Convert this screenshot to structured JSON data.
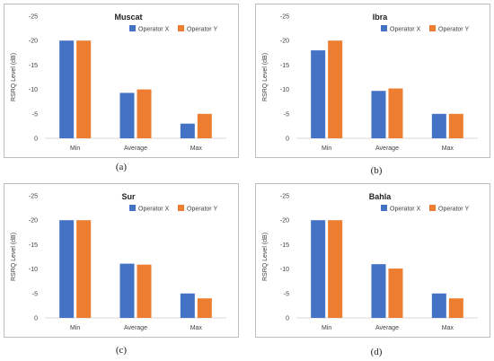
{
  "colors": {
    "operator_x": "#4472c4",
    "operator_y": "#ed7d31"
  },
  "chart_data": [
    {
      "type": "bar",
      "title": "Muscat",
      "caption": "(a)",
      "ylabel": "RSRQ Level (dB)",
      "categories": [
        "Min",
        "Average",
        "Max"
      ],
      "series": [
        {
          "name": "Operator X",
          "values": [
            -20,
            -9.3,
            -3
          ]
        },
        {
          "name": "Operator Y",
          "values": [
            -20,
            -10,
            -5
          ]
        }
      ],
      "ylim": [
        0,
        -25
      ],
      "yticks": [
        "-25",
        "-20",
        "-15",
        "-10",
        "-5",
        "0"
      ],
      "ytick_values": [
        -25,
        -20,
        -15,
        -10,
        -5,
        0
      ],
      "legend": "top-right"
    },
    {
      "type": "bar",
      "title": "Ibra",
      "caption": "(b)",
      "ylabel": "RSRQ Level (dB)",
      "categories": [
        "Min",
        "Average",
        "Max"
      ],
      "series": [
        {
          "name": "Operator X",
          "values": [
            -18,
            -9.7,
            -5
          ]
        },
        {
          "name": "Operator Y",
          "values": [
            -20,
            -10.2,
            -5
          ]
        }
      ],
      "ylim": [
        0,
        -25
      ],
      "yticks": [
        "-25",
        "-20",
        "-15",
        "-10",
        "-5",
        "0"
      ],
      "ytick_values": [
        -25,
        -20,
        -15,
        -10,
        -5,
        0
      ],
      "legend": "top-right"
    },
    {
      "type": "bar",
      "title": "Sur",
      "caption": "(c)",
      "ylabel": "RSRQ Level (dB)",
      "categories": [
        "Min",
        "Average",
        "Max"
      ],
      "series": [
        {
          "name": "Operator X",
          "values": [
            -20,
            -11.1,
            -5
          ]
        },
        {
          "name": "Operator Y",
          "values": [
            -20,
            -10.9,
            -4
          ]
        }
      ],
      "ylim": [
        0,
        -25
      ],
      "yticks": [
        "-25",
        "-20",
        "-15",
        "-10",
        "-5",
        "0"
      ],
      "ytick_values": [
        -25,
        -20,
        -15,
        -10,
        -5,
        0
      ],
      "legend": "top-right"
    },
    {
      "type": "bar",
      "title": "Bahla",
      "caption": "(d)",
      "ylabel": "RSRQ Level (dB)",
      "categories": [
        "Min",
        "Average",
        "Max"
      ],
      "series": [
        {
          "name": "Operator X",
          "values": [
            -20,
            -11,
            -5
          ]
        },
        {
          "name": "Operator Y",
          "values": [
            -20,
            -10.1,
            -4
          ]
        }
      ],
      "ylim": [
        0,
        -25
      ],
      "yticks": [
        "-25",
        "-20",
        "-15",
        "-10",
        "-5",
        "0"
      ],
      "ytick_values": [
        -25,
        -20,
        -15,
        -10,
        -5,
        0
      ],
      "legend": "top-right"
    }
  ]
}
